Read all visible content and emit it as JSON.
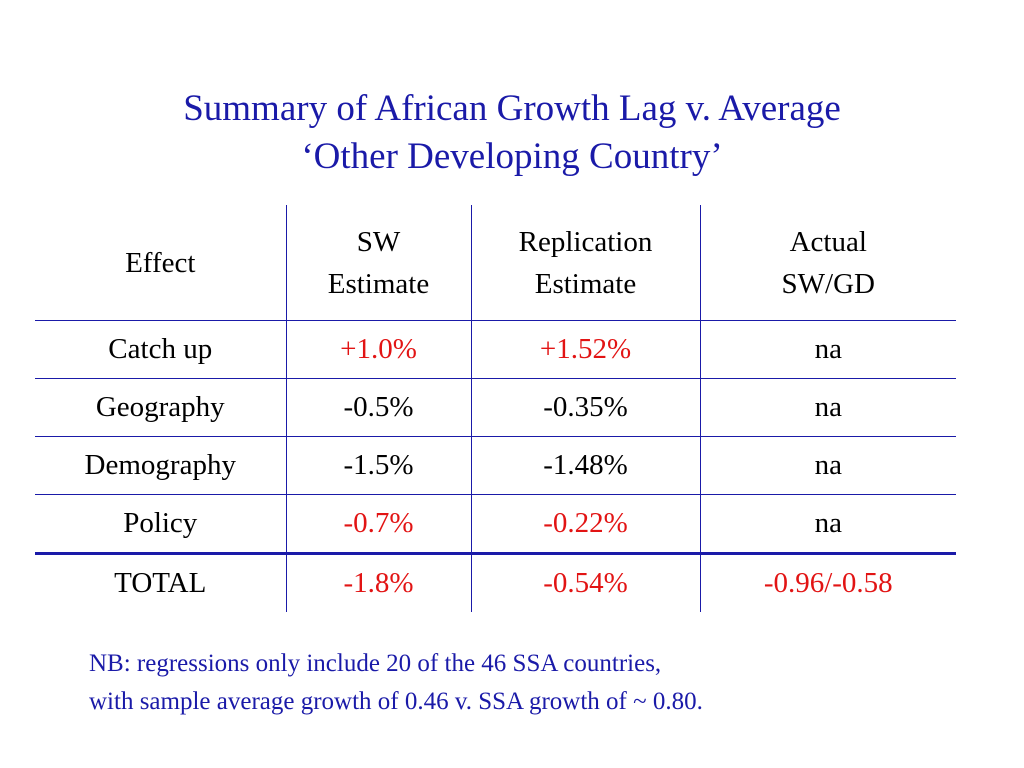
{
  "title": {
    "line1": "Summary of African Growth Lag v. Average",
    "line2": "‘Other Developing Country’"
  },
  "table": {
    "headers": {
      "effect": "Effect",
      "sw": [
        "SW",
        "Estimate"
      ],
      "replication": [
        "Replication",
        "Estimate"
      ],
      "actual": [
        "Actual",
        "SW/GD"
      ]
    },
    "rows": [
      {
        "effect": "Catch up",
        "sw": "+1.0%",
        "replication": "+1.52%",
        "actual": "na",
        "sw_color": "red",
        "rep_color": "red",
        "actual_color": "black"
      },
      {
        "effect": "Geography",
        "sw": "-0.5%",
        "replication": "-0.35%",
        "actual": "na",
        "sw_color": "black",
        "rep_color": "black",
        "actual_color": "black"
      },
      {
        "effect": "Demography",
        "sw": "-1.5%",
        "replication": "-1.48%",
        "actual": "na",
        "sw_color": "black",
        "rep_color": "black",
        "actual_color": "black"
      },
      {
        "effect": "Policy",
        "sw": "-0.7%",
        "replication": "-0.22%",
        "actual": "na",
        "sw_color": "red",
        "rep_color": "red",
        "actual_color": "black"
      },
      {
        "effect": "TOTAL",
        "sw": "-1.8%",
        "replication": "-0.54%",
        "actual": "-0.96/-0.58",
        "sw_color": "red",
        "rep_color": "red",
        "actual_color": "red"
      }
    ]
  },
  "note": {
    "line1": "NB: regressions only include 20 of the 46 SSA countries,",
    "line2": "with sample average growth of 0.46 v. SSA growth of ~ 0.80."
  },
  "colors": {
    "title": "#1a1aa8",
    "rules": "#1a1aa8",
    "highlight": "#e21414",
    "text": "#000000"
  }
}
